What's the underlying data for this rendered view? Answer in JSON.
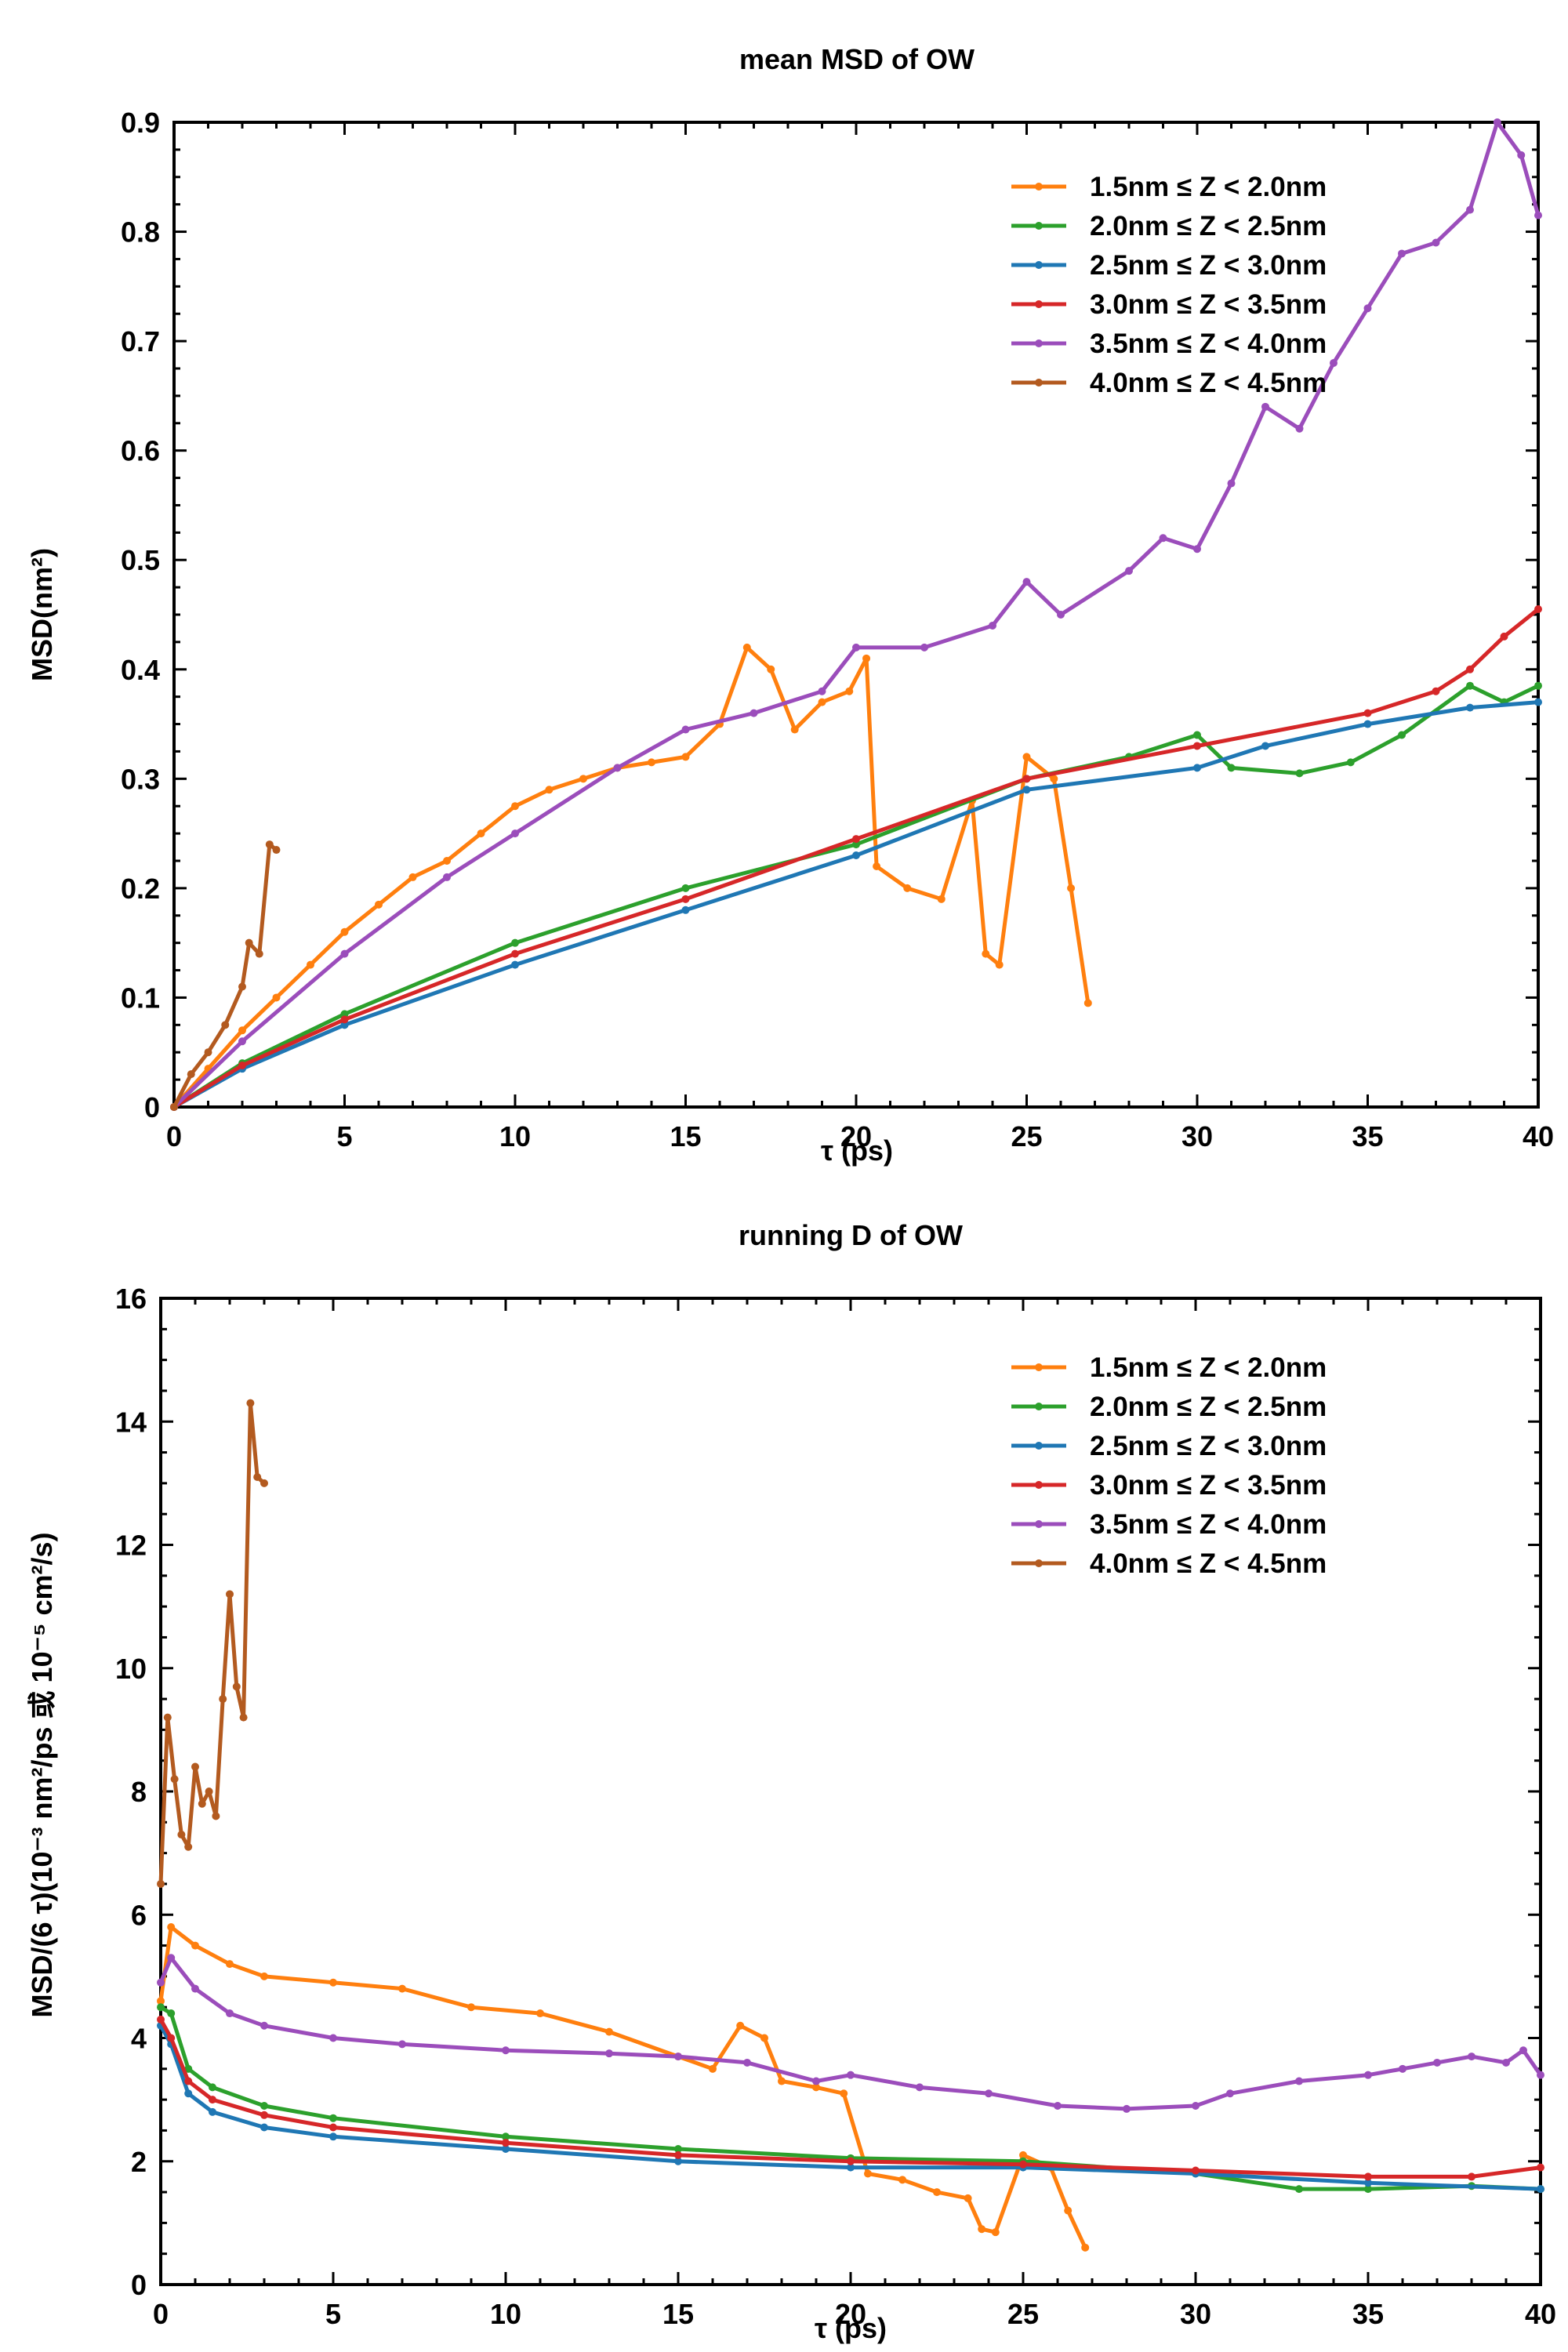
{
  "chart_data": [
    {
      "type": "line",
      "title": "mean MSD of OW",
      "xlabel": "τ (ps)",
      "ylabel": "MSD(nm²)",
      "xlim": [
        0,
        40
      ],
      "ylim": [
        0,
        0.9
      ],
      "xticks": [
        0,
        5,
        10,
        15,
        20,
        25,
        30,
        35,
        40
      ],
      "yticks": [
        0,
        0.1,
        0.2,
        0.3,
        0.4,
        0.5,
        0.6,
        0.7,
        0.8,
        0.9
      ],
      "ytick_labels": [
        "0",
        "0.1",
        "0.2",
        "0.3",
        "0.4",
        "0.5",
        "0.6",
        "0.7",
        "0.8",
        "0.9"
      ],
      "grid": false,
      "legend_position": "top-right",
      "series": [
        {
          "name": "1.5nm ≤ Z < 2.0nm",
          "color": "#ff7f0e",
          "x": [
            0,
            1,
            2,
            3,
            4,
            5,
            6,
            7,
            8,
            9,
            10,
            11,
            12,
            13,
            14,
            15,
            16,
            16.8,
            17.5,
            18.2,
            19,
            19.8,
            20.3,
            20.6,
            21.5,
            22.5,
            23.4,
            23.8,
            24.2,
            25,
            25.8,
            26.3,
            26.8
          ],
          "y": [
            0,
            0.035,
            0.07,
            0.1,
            0.13,
            0.16,
            0.185,
            0.21,
            0.225,
            0.25,
            0.275,
            0.29,
            0.3,
            0.31,
            0.315,
            0.32,
            0.35,
            0.42,
            0.4,
            0.345,
            0.37,
            0.38,
            0.41,
            0.22,
            0.2,
            0.19,
            0.28,
            0.14,
            0.13,
            0.32,
            0.3,
            0.2,
            0.095
          ]
        },
        {
          "name": "2.0nm ≤ Z < 2.5nm",
          "color": "#2ca02c",
          "x": [
            0,
            2,
            5,
            10,
            15,
            20,
            25,
            28,
            30,
            31,
            33,
            34.5,
            36,
            38,
            39,
            40
          ],
          "y": [
            0,
            0.04,
            0.085,
            0.15,
            0.2,
            0.24,
            0.3,
            0.32,
            0.34,
            0.31,
            0.305,
            0.315,
            0.34,
            0.385,
            0.37,
            0.385
          ]
        },
        {
          "name": "2.5nm ≤ Z < 3.0nm",
          "color": "#1f77b4",
          "x": [
            0,
            2,
            5,
            10,
            15,
            20,
            25,
            30,
            32,
            35,
            38,
            40
          ],
          "y": [
            0,
            0.035,
            0.075,
            0.13,
            0.18,
            0.23,
            0.29,
            0.31,
            0.33,
            0.35,
            0.365,
            0.37
          ]
        },
        {
          "name": "3.0nm ≤ Z < 3.5nm",
          "color": "#d62728",
          "x": [
            0,
            2,
            5,
            10,
            15,
            20,
            25,
            30,
            35,
            37,
            38,
            39,
            40
          ],
          "y": [
            0,
            0.038,
            0.08,
            0.14,
            0.19,
            0.245,
            0.3,
            0.33,
            0.36,
            0.38,
            0.4,
            0.43,
            0.455
          ]
        },
        {
          "name": "3.5nm ≤ Z < 4.0nm",
          "color": "#9b4dbb",
          "x": [
            0,
            2,
            5,
            8,
            10,
            13,
            15,
            17,
            19,
            20,
            22,
            24,
            25,
            26,
            28,
            29,
            30,
            31,
            32,
            33,
            34,
            35,
            36,
            37,
            38,
            38.8,
            39.5,
            40
          ],
          "y": [
            0,
            0.06,
            0.14,
            0.21,
            0.25,
            0.31,
            0.345,
            0.36,
            0.38,
            0.42,
            0.42,
            0.44,
            0.48,
            0.45,
            0.49,
            0.52,
            0.51,
            0.57,
            0.64,
            0.62,
            0.68,
            0.73,
            0.78,
            0.79,
            0.82,
            0.9,
            0.87,
            0.815
          ]
        },
        {
          "name": "4.0nm ≤ Z < 4.5nm",
          "color": "#b35a1f",
          "x": [
            0,
            0.5,
            1,
            1.5,
            2,
            2.2,
            2.5,
            2.8,
            3
          ],
          "y": [
            0,
            0.03,
            0.05,
            0.075,
            0.11,
            0.15,
            0.14,
            0.24,
            0.235
          ]
        }
      ]
    },
    {
      "type": "line",
      "title": "running D of OW",
      "xlabel": "τ (ps)",
      "ylabel": "MSD/(6 τ)(10⁻³ nm²/ps 或 10⁻⁵ cm²/s)",
      "xlim": [
        0,
        40
      ],
      "ylim": [
        0,
        16
      ],
      "xticks": [
        0,
        5,
        10,
        15,
        20,
        25,
        30,
        35,
        40
      ],
      "yticks": [
        0,
        2,
        4,
        6,
        8,
        10,
        12,
        14,
        16
      ],
      "ytick_labels": [
        "0",
        "2",
        "4",
        "6",
        "8",
        "10",
        "12",
        "14",
        "16"
      ],
      "grid": false,
      "legend_position": "top-right",
      "series": [
        {
          "name": "1.5nm ≤ Z < 2.0nm",
          "color": "#ff7f0e",
          "x": [
            0,
            0.3,
            1,
            2,
            3,
            5,
            7,
            9,
            11,
            13,
            15,
            16,
            16.8,
            17.5,
            18,
            19,
            19.8,
            20.5,
            21.5,
            22.5,
            23.4,
            23.8,
            24.2,
            25,
            25.8,
            26.3,
            26.8
          ],
          "y": [
            4.6,
            5.8,
            5.5,
            5.2,
            5.0,
            4.9,
            4.8,
            4.5,
            4.4,
            4.1,
            3.7,
            3.5,
            4.2,
            4.0,
            3.3,
            3.2,
            3.1,
            1.8,
            1.7,
            1.5,
            1.4,
            0.9,
            0.85,
            2.1,
            1.9,
            1.2,
            0.6
          ]
        },
        {
          "name": "2.0nm ≤ Z < 2.5nm",
          "color": "#2ca02c",
          "x": [
            0,
            0.3,
            0.8,
            1.5,
            3,
            5,
            10,
            15,
            20,
            25,
            30,
            33,
            35,
            38,
            40
          ],
          "y": [
            4.5,
            4.4,
            3.5,
            3.2,
            2.9,
            2.7,
            2.4,
            2.2,
            2.05,
            2.0,
            1.8,
            1.55,
            1.55,
            1.6,
            1.55
          ]
        },
        {
          "name": "2.5nm ≤ Z < 3.0nm",
          "color": "#1f77b4",
          "x": [
            0,
            0.3,
            0.8,
            1.5,
            3,
            5,
            10,
            15,
            20,
            25,
            30,
            35,
            40
          ],
          "y": [
            4.2,
            3.9,
            3.1,
            2.8,
            2.55,
            2.4,
            2.2,
            2.0,
            1.9,
            1.9,
            1.8,
            1.65,
            1.55
          ]
        },
        {
          "name": "3.0nm ≤ Z < 3.5nm",
          "color": "#d62728",
          "x": [
            0,
            0.3,
            0.8,
            1.5,
            3,
            5,
            10,
            15,
            20,
            25,
            30,
            35,
            38,
            40
          ],
          "y": [
            4.3,
            4.0,
            3.3,
            3.0,
            2.75,
            2.55,
            2.3,
            2.1,
            2.0,
            1.95,
            1.85,
            1.75,
            1.75,
            1.9
          ]
        },
        {
          "name": "3.5nm ≤ Z < 4.0nm",
          "color": "#9b4dbb",
          "x": [
            0,
            0.3,
            1,
            2,
            3,
            5,
            7,
            10,
            13,
            15,
            17,
            19,
            20,
            22,
            24,
            26,
            28,
            30,
            31,
            33,
            35,
            36,
            37,
            38,
            39,
            39.5,
            40
          ],
          "y": [
            4.9,
            5.3,
            4.8,
            4.4,
            4.2,
            4.0,
            3.9,
            3.8,
            3.75,
            3.7,
            3.6,
            3.3,
            3.4,
            3.2,
            3.1,
            2.9,
            2.85,
            2.9,
            3.1,
            3.3,
            3.4,
            3.5,
            3.6,
            3.7,
            3.6,
            3.8,
            3.4
          ]
        },
        {
          "name": "4.0nm ≤ Z < 4.5nm",
          "color": "#b35a1f",
          "x": [
            0,
            0.2,
            0.4,
            0.6,
            0.8,
            1,
            1.2,
            1.4,
            1.6,
            1.8,
            2,
            2.2,
            2.4,
            2.6,
            2.8,
            3
          ],
          "y": [
            6.5,
            9.2,
            8.2,
            7.3,
            7.1,
            8.4,
            7.8,
            8.0,
            7.6,
            9.5,
            11.2,
            9.7,
            9.2,
            14.3,
            13.1,
            13.0
          ]
        }
      ]
    }
  ]
}
